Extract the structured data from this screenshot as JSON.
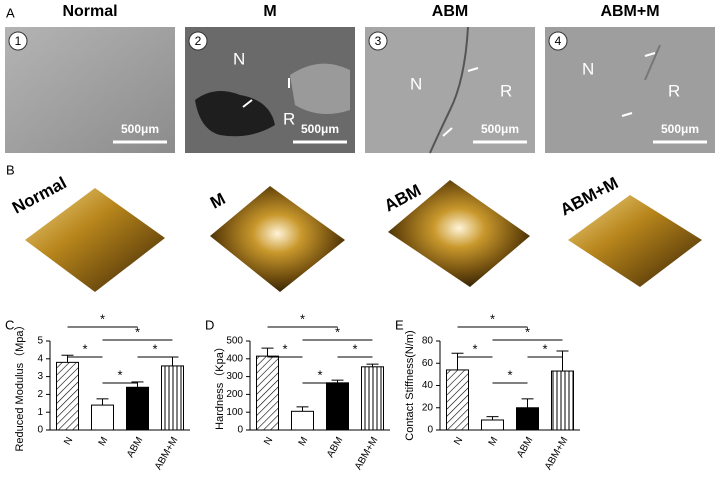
{
  "panel_a": {
    "label": "A",
    "images": [
      {
        "title": "Normal",
        "number": "1",
        "scale": "500μm",
        "labels": []
      },
      {
        "title": "M",
        "number": "2",
        "scale": "500μm",
        "labels": [
          "N",
          "R"
        ]
      },
      {
        "title": "ABM",
        "number": "3",
        "scale": "500μm",
        "labels": [
          "N",
          "R"
        ]
      },
      {
        "title": "ABM+M",
        "number": "4",
        "scale": "500μm",
        "labels": [
          "N",
          "R"
        ]
      }
    ]
  },
  "panel_b": {
    "label": "B",
    "titles": [
      "Normal",
      "M",
      "ABM",
      "ABM+M"
    ]
  },
  "chart_data": [
    {
      "type": "bar",
      "panel_label": "C",
      "y_label": "Reduced Modulus（Mpa）",
      "categories": [
        "N",
        "M",
        "ABM",
        "ABM+M"
      ],
      "values": [
        3.8,
        1.4,
        2.4,
        3.6
      ],
      "errors": [
        0.4,
        0.35,
        0.3,
        0.5
      ],
      "ylim": [
        0,
        5
      ],
      "yticks": [
        0,
        1,
        2,
        3,
        4,
        5
      ],
      "annotations": [
        "*",
        "*",
        "*",
        "*",
        "*"
      ]
    },
    {
      "type": "bar",
      "panel_label": "D",
      "y_label": "Hardness（Kpa）",
      "categories": [
        "N",
        "M",
        "ABM",
        "ABM+M"
      ],
      "values": [
        415,
        105,
        265,
        355
      ],
      "errors": [
        45,
        25,
        15,
        15
      ],
      "ylim": [
        0,
        500
      ],
      "yticks": [
        0,
        100,
        200,
        300,
        400,
        500
      ],
      "annotations": [
        "*",
        "*",
        "*",
        "*",
        "*"
      ]
    },
    {
      "type": "bar",
      "panel_label": "E",
      "y_label": "Contact Stiffness(N/m)",
      "categories": [
        "N",
        "M",
        "ABM",
        "ABM+M"
      ],
      "values": [
        54,
        9,
        20,
        53
      ],
      "errors": [
        15,
        3,
        8,
        18
      ],
      "ylim": [
        0,
        80
      ],
      "yticks": [
        0,
        20,
        40,
        60,
        80
      ],
      "annotations": [
        "*",
        "*",
        "*",
        "*",
        "*"
      ]
    }
  ]
}
